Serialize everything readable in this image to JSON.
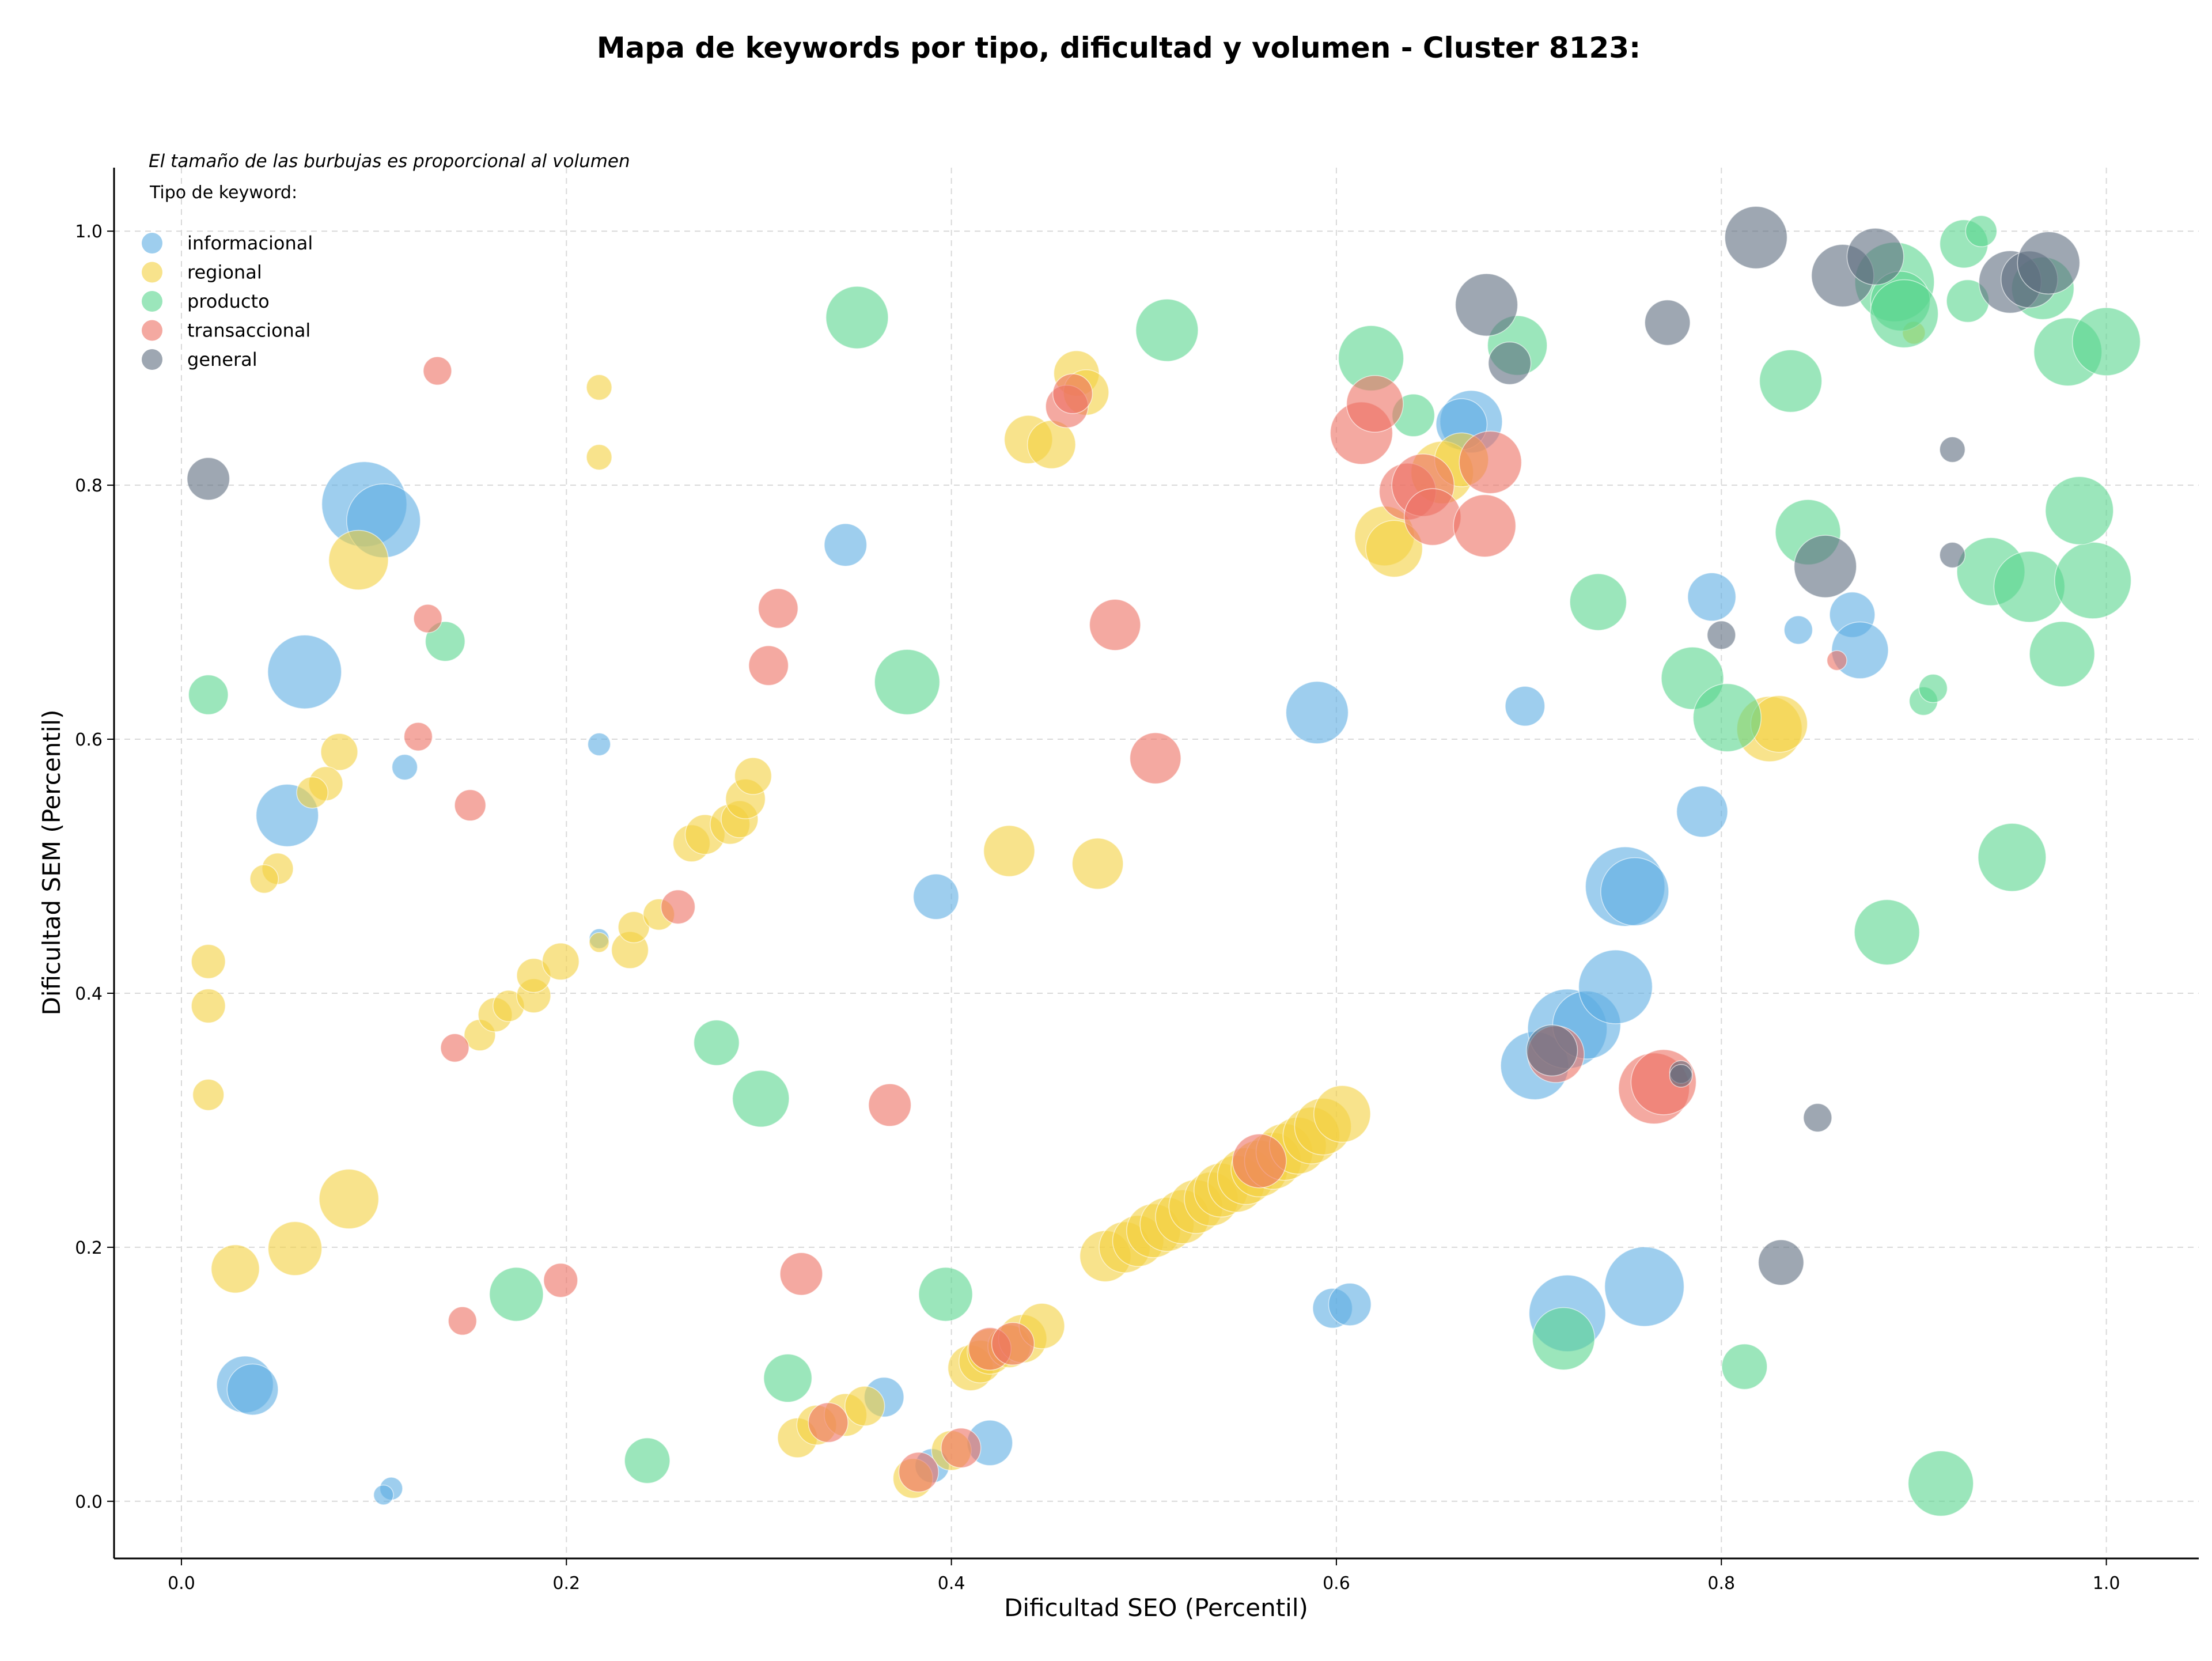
{
  "chart_data": {
    "type": "scatter",
    "title": "Mapa de keywords por tipo, dificultad y volumen - Cluster 8123:",
    "xlabel": "Dificultad SEO (Percentil)",
    "ylabel": "Dificultad SEM (Percentil)",
    "xlim": [
      -0.035,
      1.048
    ],
    "ylim": [
      -0.045,
      1.05
    ],
    "x_ticks": [
      "0.0",
      "0.2",
      "0.4",
      "0.6",
      "0.8",
      "1.0"
    ],
    "y_ticks": [
      "0.0",
      "0.2",
      "0.4",
      "0.6",
      "0.8",
      "1.0"
    ],
    "grid": true,
    "bubble_note": "El tamaño de las burbujas es proporcional al volumen",
    "legend": {
      "title": "Tipo de keyword:",
      "placement": "top-left",
      "entries": [
        "informacional",
        "regional",
        "producto",
        "transaccional",
        "general"
      ]
    },
    "colors": {
      "informacional": "#5DADE2",
      "regional": "#F4D03F",
      "producto": "#58D68D",
      "transaccional": "#EC7063",
      "general": "#5D6D7E"
    },
    "series": [
      {
        "name": "informacional",
        "points": [
          [
            0.095,
            0.785,
            30
          ],
          [
            0.105,
            0.772,
            26
          ],
          [
            0.064,
            0.653,
            26
          ],
          [
            0.055,
            0.54,
            22
          ],
          [
            0.033,
            0.092,
            20
          ],
          [
            0.037,
            0.088,
            18
          ],
          [
            0.109,
            0.01,
            8
          ],
          [
            0.105,
            0.005,
            7
          ],
          [
            0.116,
            0.578,
            9
          ],
          [
            0.217,
            0.596,
            8
          ],
          [
            0.217,
            0.443,
            7
          ],
          [
            0.345,
            0.753,
            15
          ],
          [
            0.392,
            0.476,
            16
          ],
          [
            0.365,
            0.082,
            14
          ],
          [
            0.42,
            0.046,
            16
          ],
          [
            0.39,
            0.028,
            12
          ],
          [
            0.59,
            0.621,
            22
          ],
          [
            0.598,
            0.152,
            14
          ],
          [
            0.607,
            0.155,
            15
          ],
          [
            0.67,
            0.85,
            22
          ],
          [
            0.665,
            0.848,
            18
          ],
          [
            0.698,
            0.626,
            14
          ],
          [
            0.703,
            0.343,
            24
          ],
          [
            0.72,
            0.372,
            28
          ],
          [
            0.73,
            0.375,
            24
          ],
          [
            0.745,
            0.405,
            26
          ],
          [
            0.75,
            0.484,
            28
          ],
          [
            0.755,
            0.48,
            24
          ],
          [
            0.72,
            0.148,
            27
          ],
          [
            0.76,
            0.169,
            28
          ],
          [
            0.79,
            0.543,
            18
          ],
          [
            0.795,
            0.712,
            17
          ],
          [
            0.84,
            0.686,
            10
          ],
          [
            0.868,
            0.698,
            16
          ],
          [
            0.872,
            0.67,
            20
          ]
        ]
      },
      {
        "name": "regional",
        "points": [
          [
            0.014,
            0.425,
            12
          ],
          [
            0.014,
            0.39,
            12
          ],
          [
            0.014,
            0.32,
            11
          ],
          [
            0.028,
            0.183,
            17
          ],
          [
            0.059,
            0.199,
            19
          ],
          [
            0.087,
            0.238,
            21
          ],
          [
            0.092,
            0.741,
            21
          ],
          [
            0.082,
            0.59,
            13
          ],
          [
            0.075,
            0.565,
            12
          ],
          [
            0.068,
            0.558,
            11
          ],
          [
            0.05,
            0.498,
            11
          ],
          [
            0.043,
            0.49,
            10
          ],
          [
            0.217,
            0.877,
            9
          ],
          [
            0.217,
            0.822,
            9
          ],
          [
            0.217,
            0.44,
            7
          ],
          [
            0.155,
            0.367,
            11
          ],
          [
            0.163,
            0.383,
            12
          ],
          [
            0.17,
            0.39,
            11
          ],
          [
            0.183,
            0.398,
            12
          ],
          [
            0.183,
            0.414,
            12
          ],
          [
            0.197,
            0.425,
            13
          ],
          [
            0.233,
            0.434,
            13
          ],
          [
            0.235,
            0.452,
            11
          ],
          [
            0.248,
            0.462,
            11
          ],
          [
            0.265,
            0.518,
            13
          ],
          [
            0.272,
            0.525,
            14
          ],
          [
            0.285,
            0.533,
            14
          ],
          [
            0.29,
            0.537,
            13
          ],
          [
            0.293,
            0.553,
            14
          ],
          [
            0.297,
            0.571,
            13
          ],
          [
            0.32,
            0.05,
            14
          ],
          [
            0.33,
            0.06,
            14
          ],
          [
            0.345,
            0.068,
            15
          ],
          [
            0.355,
            0.075,
            14
          ],
          [
            0.38,
            0.018,
            14
          ],
          [
            0.4,
            0.04,
            14
          ],
          [
            0.41,
            0.105,
            16
          ],
          [
            0.415,
            0.11,
            15
          ],
          [
            0.42,
            0.118,
            16
          ],
          [
            0.43,
            0.122,
            15
          ],
          [
            0.437,
            0.128,
            17
          ],
          [
            0.447,
            0.138,
            16
          ],
          [
            0.43,
            0.512,
            18
          ],
          [
            0.44,
            0.836,
            17
          ],
          [
            0.452,
            0.832,
            17
          ],
          [
            0.465,
            0.888,
            16
          ],
          [
            0.47,
            0.873,
            16
          ],
          [
            0.476,
            0.502,
            18
          ],
          [
            0.48,
            0.193,
            18
          ],
          [
            0.49,
            0.2,
            18
          ],
          [
            0.497,
            0.205,
            18
          ],
          [
            0.505,
            0.213,
            19
          ],
          [
            0.512,
            0.218,
            19
          ],
          [
            0.52,
            0.224,
            19
          ],
          [
            0.527,
            0.232,
            19
          ],
          [
            0.535,
            0.238,
            19
          ],
          [
            0.54,
            0.245,
            19
          ],
          [
            0.548,
            0.25,
            20
          ],
          [
            0.553,
            0.256,
            20
          ],
          [
            0.56,
            0.262,
            20
          ],
          [
            0.567,
            0.268,
            20
          ],
          [
            0.573,
            0.275,
            20
          ],
          [
            0.58,
            0.28,
            20
          ],
          [
            0.587,
            0.288,
            20
          ],
          [
            0.593,
            0.295,
            20
          ],
          [
            0.603,
            0.305,
            20
          ],
          [
            0.625,
            0.76,
            21
          ],
          [
            0.63,
            0.75,
            20
          ],
          [
            0.655,
            0.81,
            22
          ],
          [
            0.665,
            0.82,
            19
          ],
          [
            0.825,
            0.608,
            23
          ],
          [
            0.83,
            0.612,
            20
          ],
          [
            0.9,
            0.92,
            8
          ]
        ]
      },
      {
        "name": "producto",
        "points": [
          [
            0.014,
            0.635,
            14
          ],
          [
            0.137,
            0.677,
            14
          ],
          [
            0.174,
            0.163,
            19
          ],
          [
            0.242,
            0.032,
            16
          ],
          [
            0.278,
            0.361,
            16
          ],
          [
            0.301,
            0.317,
            20
          ],
          [
            0.315,
            0.097,
            17
          ],
          [
            0.351,
            0.932,
            22
          ],
          [
            0.377,
            0.645,
            23
          ],
          [
            0.397,
            0.163,
            19
          ],
          [
            0.512,
            0.922,
            22
          ],
          [
            0.618,
            0.9,
            23
          ],
          [
            0.64,
            0.855,
            15
          ],
          [
            0.694,
            0.91,
            21
          ],
          [
            0.718,
            0.128,
            22
          ],
          [
            0.736,
            0.708,
            20
          ],
          [
            0.785,
            0.648,
            22
          ],
          [
            0.803,
            0.617,
            24
          ],
          [
            0.812,
            0.106,
            16
          ],
          [
            0.836,
            0.882,
            22
          ],
          [
            0.845,
            0.763,
            23
          ],
          [
            0.886,
            0.448,
            23
          ],
          [
            0.89,
            0.96,
            28
          ],
          [
            0.893,
            0.945,
            21
          ],
          [
            0.895,
            0.935,
            24
          ],
          [
            0.914,
            0.014,
            23
          ],
          [
            0.926,
            0.99,
            17
          ],
          [
            0.935,
            1.0,
            11
          ],
          [
            0.94,
            0.732,
            24
          ],
          [
            0.96,
            0.72,
            25
          ],
          [
            0.967,
            0.955,
            22
          ],
          [
            0.98,
            0.905,
            24
          ],
          [
            0.977,
            0.667,
            23
          ],
          [
            0.993,
            0.725,
            27
          ],
          [
            1.0,
            0.913,
            24
          ],
          [
            0.986,
            0.78,
            24
          ],
          [
            0.928,
            0.945,
            15
          ],
          [
            0.905,
            0.63,
            10
          ],
          [
            0.91,
            0.64,
            10
          ],
          [
            0.951,
            0.507,
            24
          ]
        ]
      },
      {
        "name": "transaccional",
        "points": [
          [
            0.133,
            0.89,
            10
          ],
          [
            0.128,
            0.695,
            10
          ],
          [
            0.123,
            0.602,
            10
          ],
          [
            0.15,
            0.548,
            11
          ],
          [
            0.142,
            0.357,
            10
          ],
          [
            0.146,
            0.142,
            10
          ],
          [
            0.197,
            0.174,
            12
          ],
          [
            0.258,
            0.468,
            12
          ],
          [
            0.31,
            0.703,
            14
          ],
          [
            0.305,
            0.658,
            14
          ],
          [
            0.368,
            0.312,
            15
          ],
          [
            0.322,
            0.179,
            15
          ],
          [
            0.336,
            0.062,
            14
          ],
          [
            0.383,
            0.023,
            14
          ],
          [
            0.405,
            0.042,
            14
          ],
          [
            0.42,
            0.12,
            15
          ],
          [
            0.432,
            0.124,
            15
          ],
          [
            0.46,
            0.862,
            15
          ],
          [
            0.463,
            0.872,
            14
          ],
          [
            0.485,
            0.69,
            18
          ],
          [
            0.506,
            0.585,
            18
          ],
          [
            0.56,
            0.268,
            19
          ],
          [
            0.613,
            0.841,
            22
          ],
          [
            0.62,
            0.864,
            20
          ],
          [
            0.637,
            0.795,
            20
          ],
          [
            0.645,
            0.8,
            22
          ],
          [
            0.65,
            0.775,
            20
          ],
          [
            0.68,
            0.818,
            22
          ],
          [
            0.677,
            0.768,
            22
          ],
          [
            0.714,
            0.352,
            20
          ],
          [
            0.765,
            0.325,
            25
          ],
          [
            0.77,
            0.33,
            23
          ],
          [
            0.86,
            0.662,
            7
          ]
        ]
      },
      {
        "name": "general",
        "points": [
          [
            0.014,
            0.805,
            15
          ],
          [
            0.678,
            0.942,
            22
          ],
          [
            0.69,
            0.896,
            15
          ],
          [
            0.772,
            0.928,
            16
          ],
          [
            0.779,
            0.338,
            8
          ],
          [
            0.779,
            0.335,
            8
          ],
          [
            0.8,
            0.682,
            10
          ],
          [
            0.818,
            0.995,
            22
          ],
          [
            0.831,
            0.188,
            16
          ],
          [
            0.85,
            0.302,
            10
          ],
          [
            0.854,
            0.736,
            22
          ],
          [
            0.863,
            0.965,
            22
          ],
          [
            0.88,
            0.98,
            20
          ],
          [
            0.92,
            0.828,
            9
          ],
          [
            0.92,
            0.745,
            9
          ],
          [
            0.95,
            0.96,
            22
          ],
          [
            0.96,
            0.962,
            20
          ],
          [
            0.97,
            0.975,
            22
          ],
          [
            0.712,
            0.355,
            18
          ]
        ]
      }
    ]
  }
}
